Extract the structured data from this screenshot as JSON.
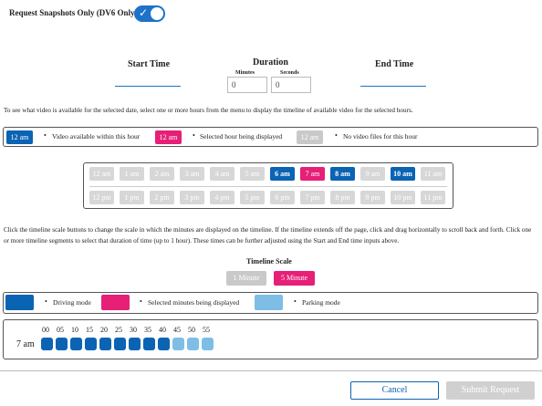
{
  "snapshots": {
    "label": "Request Snapshots Only (DV6 Only)",
    "enabled": true
  },
  "start_time": {
    "label": "Start Time"
  },
  "duration": {
    "label": "Duration",
    "minutes_label": "Minutes",
    "seconds_label": "Seconds",
    "minutes_value": "0",
    "seconds_value": "0"
  },
  "end_time": {
    "label": "End Time"
  },
  "instructions1": "To see what video is available for the selected date, select one or more hours from the menu to display the timeline of available video for the selected hours.",
  "legend1": {
    "chip1": "12 am",
    "text1": "Video available within this hour",
    "chip2": "12 am",
    "text2": "Selected hour being displayed",
    "chip3": "12 am",
    "text3": "No video files for this hour"
  },
  "hours_am": [
    "12 am",
    "1 am",
    "2 am",
    "3 am",
    "4 am",
    "5 am",
    "6 am",
    "7 am",
    "8 am",
    "9 am",
    "10 am",
    "11 am"
  ],
  "hours_am_state": [
    "na",
    "na",
    "na",
    "na",
    "na",
    "na",
    "av",
    "sel",
    "av",
    "na",
    "av",
    "na"
  ],
  "hours_pm": [
    "12 pm",
    "1 pm",
    "2 pm",
    "3 pm",
    "4 pm",
    "5 pm",
    "6 pm",
    "7 pm",
    "8 pm",
    "9 pm",
    "10 pm",
    "11 pm"
  ],
  "instructions2": "Click the timeline scale buttons to change the scale in which the minutes are displayed on the timeline. If the timeline extends off the page, click and drag horizontally to scroll back and forth. Click one or more timeline segments to select that duration of time (up to 1 hour). These times can be further adjusted using the Start and End time inputs above.",
  "timeline_scale": {
    "label": "Timeline Scale",
    "btn1": "1 Minute",
    "btn2": "5 Minute"
  },
  "legend2": {
    "text1": "Driving mode",
    "text2": "Selected minutes being displayed",
    "text3": "Parking mode"
  },
  "timeline": {
    "hour_label": "7 am",
    "minutes": [
      "00",
      "05",
      "10",
      "15",
      "20",
      "25",
      "30",
      "35",
      "40",
      "45",
      "50",
      "55"
    ],
    "modes": [
      "driving",
      "driving",
      "driving",
      "driving",
      "driving",
      "driving",
      "driving",
      "driving",
      "driving",
      "parking",
      "parking",
      "parking"
    ]
  },
  "buttons": {
    "cancel": "Cancel",
    "submit": "Submit Request"
  },
  "colors": {
    "blue": "#0b63b4",
    "pink": "#e61f77",
    "gray": "#c9c9c9",
    "light_blue": "#7ebee6"
  }
}
